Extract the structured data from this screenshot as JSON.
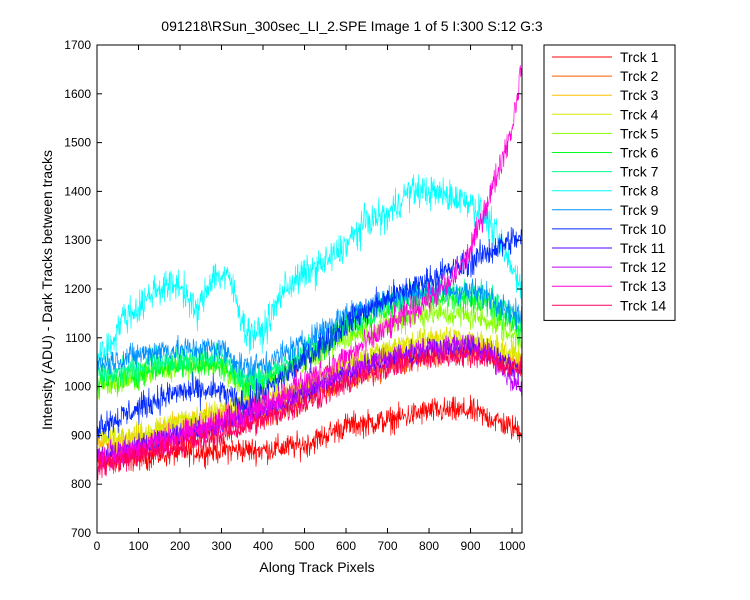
{
  "window": {
    "background": "#ffffff"
  },
  "chart_data": {
    "type": "line",
    "title": "091218\\RSun_300sec_LI_2.SPE  Image 1 of 5  I:300  S:12  G:3",
    "xlabel": "Along Track Pixels",
    "ylabel": "Intensity (ADU) - Dark Tracks between tracks",
    "xlim": [
      0,
      1024
    ],
    "ylim": [
      700,
      1700
    ],
    "xticks": [
      0,
      100,
      200,
      300,
      400,
      500,
      600,
      700,
      800,
      900,
      1000
    ],
    "yticks": [
      700,
      800,
      900,
      1000,
      1100,
      1200,
      1300,
      1400,
      1500,
      1600,
      1700
    ],
    "grid": false,
    "legend_position": "outside-right",
    "series": [
      {
        "name": "Trck 1",
        "color": "#ff0000",
        "noise": 22,
        "points": [
          [
            0,
            840
          ],
          [
            100,
            855
          ],
          [
            200,
            865
          ],
          [
            300,
            870
          ],
          [
            400,
            870
          ],
          [
            500,
            880
          ],
          [
            600,
            920
          ],
          [
            700,
            930
          ],
          [
            800,
            950
          ],
          [
            900,
            950
          ],
          [
            950,
            935
          ],
          [
            1000,
            915
          ],
          [
            1024,
            910
          ]
        ]
      },
      {
        "name": "Trck 2",
        "color": "#ff5a00",
        "noise": 20,
        "points": [
          [
            0,
            850
          ],
          [
            100,
            870
          ],
          [
            200,
            895
          ],
          [
            300,
            920
          ],
          [
            400,
            940
          ],
          [
            500,
            975
          ],
          [
            600,
            1010
          ],
          [
            700,
            1040
          ],
          [
            800,
            1060
          ],
          [
            900,
            1070
          ],
          [
            950,
            1065
          ],
          [
            1000,
            1045
          ],
          [
            1024,
            1040
          ]
        ]
      },
      {
        "name": "Trck 3",
        "color": "#ffc000",
        "noise": 20,
        "points": [
          [
            0,
            880
          ],
          [
            100,
            895
          ],
          [
            200,
            925
          ],
          [
            300,
            945
          ],
          [
            400,
            965
          ],
          [
            500,
            995
          ],
          [
            600,
            1035
          ],
          [
            700,
            1065
          ],
          [
            800,
            1085
          ],
          [
            900,
            1085
          ],
          [
            950,
            1075
          ],
          [
            1000,
            1055
          ],
          [
            1024,
            1045
          ]
        ]
      },
      {
        "name": "Trck 4",
        "color": "#d8e800",
        "noise": 20,
        "points": [
          [
            0,
            895
          ],
          [
            100,
            900
          ],
          [
            200,
            930
          ],
          [
            300,
            955
          ],
          [
            400,
            975
          ],
          [
            500,
            1000
          ],
          [
            600,
            1045
          ],
          [
            700,
            1080
          ],
          [
            800,
            1100
          ],
          [
            900,
            1100
          ],
          [
            950,
            1085
          ],
          [
            1000,
            1070
          ],
          [
            1024,
            1060
          ]
        ]
      },
      {
        "name": "Trck 5",
        "color": "#88ff00",
        "noise": 22,
        "points": [
          [
            0,
            1000
          ],
          [
            50,
            1005
          ],
          [
            100,
            1020
          ],
          [
            150,
            1035
          ],
          [
            200,
            1040
          ],
          [
            300,
            1045
          ],
          [
            350,
            1000
          ],
          [
            400,
            1010
          ],
          [
            500,
            1050
          ],
          [
            600,
            1100
          ],
          [
            700,
            1130
          ],
          [
            800,
            1150
          ],
          [
            900,
            1145
          ],
          [
            950,
            1135
          ],
          [
            1000,
            1105
          ],
          [
            1024,
            1095
          ]
        ]
      },
      {
        "name": "Trck 6",
        "color": "#00ff20",
        "noise": 22,
        "points": [
          [
            0,
            1010
          ],
          [
            50,
            1015
          ],
          [
            100,
            1025
          ],
          [
            150,
            1040
          ],
          [
            200,
            1045
          ],
          [
            300,
            1045
          ],
          [
            350,
            1005
          ],
          [
            400,
            1010
          ],
          [
            500,
            1060
          ],
          [
            600,
            1120
          ],
          [
            700,
            1160
          ],
          [
            800,
            1180
          ],
          [
            900,
            1175
          ],
          [
            950,
            1165
          ],
          [
            1000,
            1130
          ],
          [
            1024,
            1115
          ]
        ]
      },
      {
        "name": "Trck 7",
        "color": "#00ff90",
        "noise": 22,
        "points": [
          [
            0,
            1025
          ],
          [
            50,
            1030
          ],
          [
            100,
            1040
          ],
          [
            150,
            1055
          ],
          [
            200,
            1055
          ],
          [
            300,
            1060
          ],
          [
            350,
            1015
          ],
          [
            400,
            1020
          ],
          [
            500,
            1070
          ],
          [
            600,
            1130
          ],
          [
            700,
            1170
          ],
          [
            800,
            1195
          ],
          [
            900,
            1195
          ],
          [
            950,
            1185
          ],
          [
            1000,
            1150
          ],
          [
            1024,
            1130
          ]
        ]
      },
      {
        "name": "Trck 8",
        "color": "#00ffff",
        "noise": 28,
        "points": [
          [
            0,
            1060
          ],
          [
            30,
            1080
          ],
          [
            60,
            1140
          ],
          [
            100,
            1160
          ],
          [
            140,
            1200
          ],
          [
            200,
            1210
          ],
          [
            240,
            1150
          ],
          [
            280,
            1230
          ],
          [
            320,
            1220
          ],
          [
            360,
            1110
          ],
          [
            400,
            1110
          ],
          [
            450,
            1200
          ],
          [
            500,
            1230
          ],
          [
            560,
            1260
          ],
          [
            600,
            1290
          ],
          [
            650,
            1340
          ],
          [
            700,
            1350
          ],
          [
            750,
            1400
          ],
          [
            800,
            1400
          ],
          [
            850,
            1390
          ],
          [
            900,
            1380
          ],
          [
            950,
            1330
          ],
          [
            1000,
            1240
          ],
          [
            1024,
            1210
          ]
        ]
      },
      {
        "name": "Trck 9",
        "color": "#0090ff",
        "noise": 22,
        "points": [
          [
            0,
            1045
          ],
          [
            50,
            1055
          ],
          [
            100,
            1065
          ],
          [
            150,
            1075
          ],
          [
            200,
            1075
          ],
          [
            300,
            1080
          ],
          [
            350,
            1040
          ],
          [
            400,
            1045
          ],
          [
            500,
            1090
          ],
          [
            600,
            1150
          ],
          [
            700,
            1180
          ],
          [
            800,
            1200
          ],
          [
            900,
            1195
          ],
          [
            950,
            1185
          ],
          [
            1000,
            1150
          ],
          [
            1024,
            1140
          ]
        ]
      },
      {
        "name": "Trck 10",
        "color": "#0028ff",
        "noise": 24,
        "points": [
          [
            0,
            920
          ],
          [
            50,
            935
          ],
          [
            100,
            955
          ],
          [
            150,
            975
          ],
          [
            200,
            990
          ],
          [
            300,
            990
          ],
          [
            350,
            960
          ],
          [
            400,
            985
          ],
          [
            500,
            1055
          ],
          [
            600,
            1130
          ],
          [
            700,
            1180
          ],
          [
            800,
            1220
          ],
          [
            900,
            1255
          ],
          [
            950,
            1280
          ],
          [
            1000,
            1300
          ],
          [
            1024,
            1305
          ]
        ]
      },
      {
        "name": "Trck 11",
        "color": "#5000ff",
        "noise": 20,
        "points": [
          [
            0,
            855
          ],
          [
            100,
            880
          ],
          [
            200,
            900
          ],
          [
            300,
            925
          ],
          [
            400,
            950
          ],
          [
            500,
            985
          ],
          [
            600,
            1025
          ],
          [
            700,
            1055
          ],
          [
            800,
            1075
          ],
          [
            900,
            1080
          ],
          [
            950,
            1065
          ],
          [
            1000,
            1040
          ],
          [
            1024,
            1030
          ]
        ]
      },
      {
        "name": "Trck 12",
        "color": "#c000ff",
        "noise": 20,
        "points": [
          [
            0,
            855
          ],
          [
            100,
            875
          ],
          [
            200,
            900
          ],
          [
            300,
            925
          ],
          [
            400,
            955
          ],
          [
            500,
            990
          ],
          [
            600,
            1030
          ],
          [
            700,
            1060
          ],
          [
            800,
            1080
          ],
          [
            900,
            1085
          ],
          [
            950,
            1070
          ],
          [
            1000,
            1010
          ],
          [
            1024,
            1000
          ]
        ]
      },
      {
        "name": "Trck 13",
        "color": "#ff00d8",
        "noise": 24,
        "points": [
          [
            0,
            845
          ],
          [
            100,
            870
          ],
          [
            200,
            900
          ],
          [
            300,
            930
          ],
          [
            400,
            960
          ],
          [
            500,
            1010
          ],
          [
            600,
            1060
          ],
          [
            700,
            1120
          ],
          [
            800,
            1180
          ],
          [
            850,
            1210
          ],
          [
            900,
            1280
          ],
          [
            950,
            1400
          ],
          [
            1000,
            1530
          ],
          [
            1024,
            1660
          ]
        ]
      },
      {
        "name": "Trck 14",
        "color": "#ff0060",
        "noise": 20,
        "points": [
          [
            0,
            835
          ],
          [
            100,
            860
          ],
          [
            200,
            880
          ],
          [
            300,
            900
          ],
          [
            400,
            930
          ],
          [
            500,
            965
          ],
          [
            600,
            1005
          ],
          [
            700,
            1040
          ],
          [
            800,
            1060
          ],
          [
            900,
            1065
          ],
          [
            950,
            1055
          ],
          [
            1000,
            1035
          ],
          [
            1024,
            1040
          ]
        ]
      }
    ]
  }
}
